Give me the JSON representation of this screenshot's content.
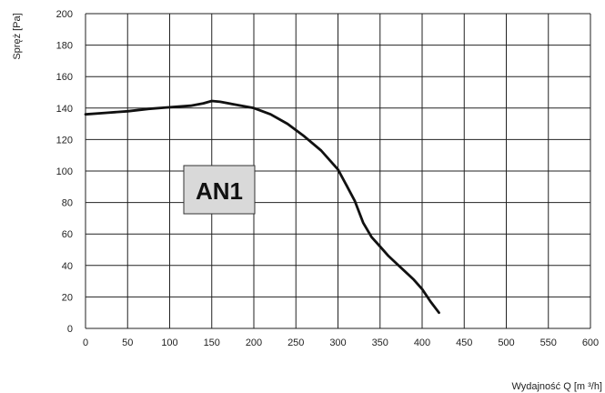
{
  "chart_data": {
    "type": "line",
    "title": "",
    "xlabel": "Wydajność Q [m ³/h]",
    "ylabel": "Spręż [Pa]",
    "xlim": [
      0,
      600
    ],
    "ylim": [
      0,
      200
    ],
    "xticks": [
      0,
      50,
      100,
      150,
      200,
      250,
      300,
      350,
      400,
      450,
      500,
      550,
      600
    ],
    "yticks": [
      0,
      20,
      40,
      60,
      80,
      100,
      120,
      140,
      160,
      180,
      200
    ],
    "grid": true,
    "legend_position": "center-left",
    "series": [
      {
        "name": "AN1",
        "color": "#111111",
        "x": [
          0,
          25,
          50,
          75,
          100,
          125,
          140,
          150,
          160,
          175,
          200,
          220,
          240,
          260,
          280,
          300,
          310,
          320,
          330,
          340,
          350,
          360,
          370,
          380,
          390,
          400,
          410,
          420
        ],
        "y": [
          136,
          137,
          138,
          139.5,
          140.5,
          141.5,
          143,
          144.5,
          144,
          142.5,
          140,
          136,
          130,
          122,
          113,
          101,
          91,
          81,
          67,
          58,
          52,
          46,
          41,
          36,
          31,
          25,
          17,
          10
        ]
      }
    ]
  }
}
